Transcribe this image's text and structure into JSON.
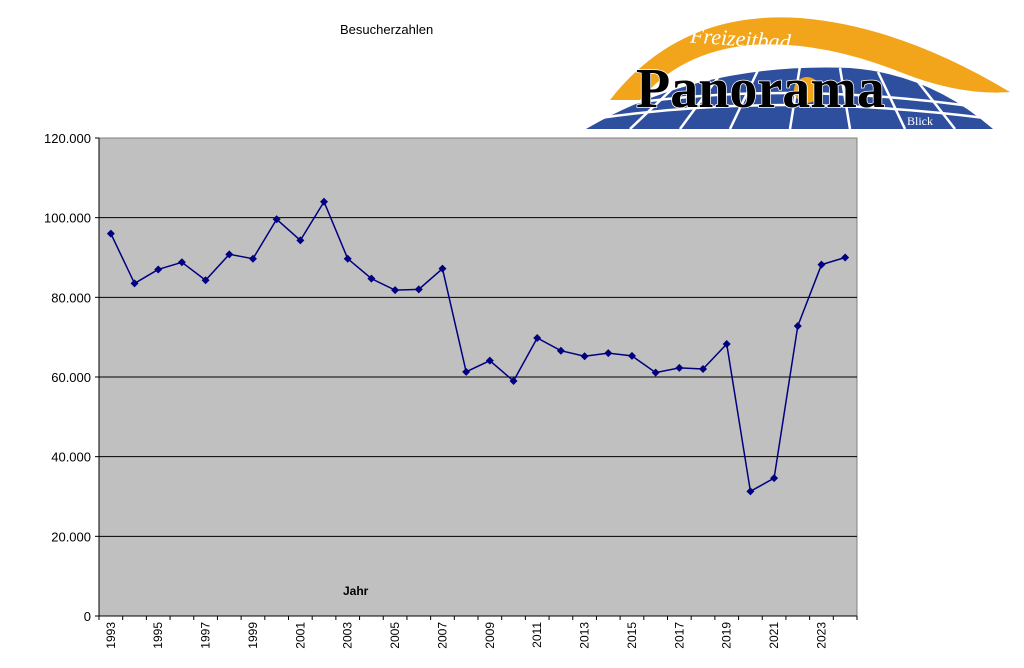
{
  "chart_data": {
    "type": "line",
    "title": "Besucherzahlen",
    "xlabel": "Jahr",
    "ylabel": "",
    "x": [
      1993,
      1994,
      1995,
      1996,
      1997,
      1998,
      1999,
      2000,
      2001,
      2002,
      2003,
      2004,
      2005,
      2006,
      2007,
      2008,
      2009,
      2010,
      2011,
      2012,
      2013,
      2014,
      2015,
      2016,
      2017,
      2018,
      2019,
      2020,
      2021,
      2022,
      2023,
      2024
    ],
    "values": [
      96000,
      83500,
      87000,
      88800,
      84300,
      90800,
      89700,
      99600,
      94300,
      104000,
      89700,
      84700,
      81800,
      82000,
      87200,
      61300,
      64100,
      59000,
      69800,
      66600,
      65200,
      66000,
      65300,
      61100,
      62300,
      62000,
      68300,
      31300,
      34600,
      72800,
      88200,
      90000
    ],
    "ylim": [
      0,
      120000
    ],
    "xtick_labels": [
      "1993",
      "1995",
      "1997",
      "1999",
      "2001",
      "2003",
      "2005",
      "2007",
      "2009",
      "2011",
      "2013",
      "2015",
      "2017",
      "2019",
      "2021",
      "2023"
    ],
    "ytick_labels": [
      "0",
      "20.000",
      "40.000",
      "60.000",
      "80.000",
      "100.000",
      "120.000"
    ],
    "grid": "horizontal",
    "plot_background": "#c0c0c0",
    "line_color": "#000080"
  },
  "logo": {
    "top_text": "Freizeitbad",
    "main_text": "Panorama",
    "sub_text": "Blick",
    "colors": {
      "orange": "#f2a51a",
      "blue": "#2e4e9e",
      "black": "#000000"
    }
  }
}
